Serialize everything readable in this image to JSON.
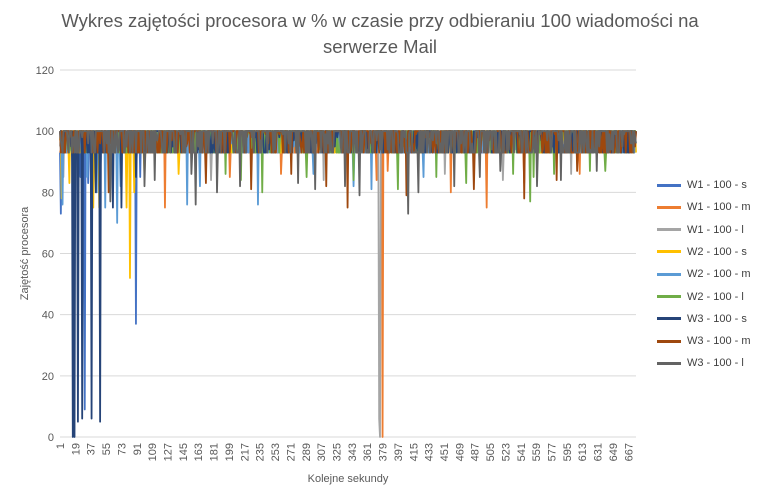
{
  "chart_data": {
    "type": "line",
    "title_lines": [
      "Wykres zajętości procesora w % w czasie przy odbieraniu 100 wiadomości na",
      "serwerze Mail"
    ],
    "xlabel": "Kolejne sekundy",
    "ylabel": "Zajętość procesora",
    "ylim": [
      0,
      120
    ],
    "yticks": [
      0,
      20,
      40,
      60,
      80,
      100,
      120
    ],
    "xlim": [
      1,
      676
    ],
    "xticks": [
      1,
      19,
      37,
      55,
      73,
      91,
      109,
      127,
      145,
      163,
      181,
      199,
      217,
      235,
      253,
      271,
      289,
      307,
      325,
      343,
      361,
      379,
      397,
      415,
      433,
      451,
      469,
      487,
      505,
      523,
      541,
      559,
      577,
      595,
      613,
      631,
      649,
      667
    ],
    "grid": "horizontal",
    "legend_position": "right",
    "series": [
      {
        "name": "W1 - 100 - s",
        "color": "#4472C4",
        "baseline": 100,
        "low": 93,
        "spikes": [
          [
            2,
            73
          ],
          [
            16,
            87
          ],
          [
            25,
            85
          ],
          [
            30,
            9
          ],
          [
            34,
            83
          ],
          [
            42,
            88
          ],
          [
            48,
            84
          ],
          [
            90,
            37
          ],
          [
            95,
            85
          ]
        ]
      },
      {
        "name": "W1 - 100 - m",
        "color": "#ED7D31",
        "baseline": 100,
        "low": 93,
        "spikes": [
          [
            124,
            75
          ],
          [
            200,
            85
          ],
          [
            260,
            86
          ],
          [
            372,
            84
          ],
          [
            379,
            0
          ],
          [
            385,
            87
          ],
          [
            459,
            80
          ],
          [
            501,
            75
          ],
          [
            545,
            83
          ],
          [
            610,
            86
          ]
        ]
      },
      {
        "name": "W1 - 100 - l",
        "color": "#A5A5A5",
        "baseline": 100,
        "low": 93,
        "spikes": [
          [
            5,
            85
          ],
          [
            178,
            84
          ],
          [
            310,
            84
          ],
          [
            375,
            6
          ],
          [
            376,
            0
          ],
          [
            452,
            86
          ],
          [
            520,
            84
          ],
          [
            600,
            86
          ]
        ]
      },
      {
        "name": "W2 - 100 - s",
        "color": "#FFC000",
        "baseline": 100,
        "low": 93,
        "spikes": [
          [
            3,
            78
          ],
          [
            12,
            83
          ],
          [
            40,
            75
          ],
          [
            47,
            75
          ],
          [
            79,
            75
          ],
          [
            83,
            52
          ],
          [
            88,
            80
          ],
          [
            100,
            86
          ],
          [
            140,
            86
          ]
        ]
      },
      {
        "name": "W2 - 100 - m",
        "color": "#5B9BD5",
        "baseline": 100,
        "low": 93,
        "spikes": [
          [
            4,
            76
          ],
          [
            33,
            85
          ],
          [
            44,
            80
          ],
          [
            54,
            75
          ],
          [
            68,
            70
          ],
          [
            72,
            82
          ],
          [
            150,
            76
          ],
          [
            165,
            82
          ],
          [
            233,
            76
          ],
          [
            298,
            86
          ],
          [
            345,
            82
          ],
          [
            366,
            81
          ],
          [
            427,
            85
          ]
        ]
      },
      {
        "name": "W2 - 100 - l",
        "color": "#70AD47",
        "baseline": 100,
        "low": 93,
        "spikes": [
          [
            195,
            86
          ],
          [
            213,
            84
          ],
          [
            238,
            80
          ],
          [
            290,
            85
          ],
          [
            345,
            84
          ],
          [
            397,
            81
          ],
          [
            442,
            85
          ],
          [
            477,
            83
          ],
          [
            532,
            86
          ],
          [
            552,
            77
          ],
          [
            556,
            85
          ],
          [
            580,
            86
          ],
          [
            622,
            87
          ],
          [
            640,
            87
          ]
        ]
      },
      {
        "name": "W3 - 100 - s",
        "color": "#264478",
        "baseline": 100,
        "low": 93,
        "spikes": [
          [
            16,
            0
          ],
          [
            18,
            0
          ],
          [
            22,
            5
          ],
          [
            27,
            6
          ],
          [
            38,
            6
          ],
          [
            43,
            80
          ],
          [
            48,
            5
          ],
          [
            63,
            75
          ],
          [
            73,
            75
          ],
          [
            90,
            85
          ]
        ]
      },
      {
        "name": "W3 - 100 - m",
        "color": "#9E480E",
        "baseline": 100,
        "low": 93,
        "spikes": [
          [
            58,
            80
          ],
          [
            172,
            83
          ],
          [
            225,
            81
          ],
          [
            272,
            86
          ],
          [
            313,
            82
          ],
          [
            338,
            75
          ],
          [
            407,
            79
          ],
          [
            486,
            81
          ],
          [
            545,
            78
          ],
          [
            583,
            84
          ],
          [
            607,
            87
          ]
        ]
      },
      {
        "name": "W3 - 100 - l",
        "color": "#636363",
        "baseline": 100,
        "low": 93,
        "spikes": [
          [
            60,
            77
          ],
          [
            100,
            82
          ],
          [
            112,
            84
          ],
          [
            155,
            86
          ],
          [
            160,
            76
          ],
          [
            185,
            80
          ],
          [
            212,
            82
          ],
          [
            280,
            83
          ],
          [
            300,
            81
          ],
          [
            335,
            82
          ],
          [
            352,
            79
          ],
          [
            409,
            73
          ],
          [
            421,
            80
          ],
          [
            463,
            82
          ],
          [
            493,
            85
          ],
          [
            517,
            87
          ],
          [
            560,
            82
          ],
          [
            588,
            84
          ],
          [
            630,
            87
          ],
          [
            660,
            95
          ]
        ]
      }
    ]
  }
}
